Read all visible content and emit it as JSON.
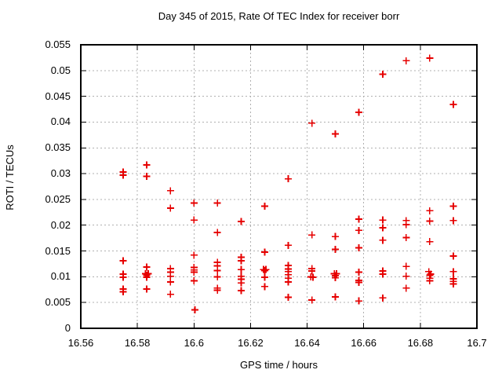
{
  "chart_data": {
    "type": "scatter",
    "title": "Day 345 of 2015, Rate Of TEC Index for receiver borr",
    "xlabel": "GPS time / hours",
    "ylabel": "ROTI / TECUs",
    "xlim": [
      16.56,
      16.7
    ],
    "ylim": [
      0,
      0.055
    ],
    "xticks": [
      16.56,
      16.58,
      16.6,
      16.62,
      16.64,
      16.66,
      16.68,
      16.7
    ],
    "xtick_labels": [
      "16.56",
      "16.58",
      "16.6",
      "16.62",
      "16.64",
      "16.66",
      "16.68",
      "16.7"
    ],
    "yticks": [
      0,
      0.005,
      0.01,
      0.015,
      0.02,
      0.025,
      0.03,
      0.035,
      0.04,
      0.045,
      0.05,
      0.055
    ],
    "ytick_labels": [
      "0",
      "0.005",
      "0.01",
      "0.015",
      "0.02",
      "0.025",
      "0.03",
      "0.035",
      "0.04",
      "0.045",
      "0.05",
      "0.055"
    ],
    "grid": true,
    "legend": null,
    "colors": {
      "marker": "#e60000",
      "grid": "#b0b0b0",
      "axis": "#000000",
      "background": "#ffffff",
      "text": "#000000"
    },
    "marker": {
      "shape": "plus",
      "size": 9
    },
    "series": [
      {
        "name": "ROTI",
        "points": [
          [
            16.575,
            0.0303
          ],
          [
            16.575,
            0.0297
          ],
          [
            16.575,
            0.0131
          ],
          [
            16.575,
            0.0105
          ],
          [
            16.575,
            0.0099
          ],
          [
            16.575,
            0.0076
          ],
          [
            16.575,
            0.0071
          ],
          [
            16.5833,
            0.0317
          ],
          [
            16.5833,
            0.0295
          ],
          [
            16.5833,
            0.0119
          ],
          [
            16.5829,
            0.0106
          ],
          [
            16.5838,
            0.0106
          ],
          [
            16.5833,
            0.0103
          ],
          [
            16.5833,
            0.0099
          ],
          [
            16.5833,
            0.0076
          ],
          [
            16.5917,
            0.0267
          ],
          [
            16.5917,
            0.0233
          ],
          [
            16.5917,
            0.0116
          ],
          [
            16.5917,
            0.0109
          ],
          [
            16.5917,
            0.0101
          ],
          [
            16.5917,
            0.009
          ],
          [
            16.5917,
            0.0066
          ],
          [
            16.6,
            0.0243
          ],
          [
            16.6,
            0.021
          ],
          [
            16.6,
            0.0142
          ],
          [
            16.6,
            0.0118
          ],
          [
            16.6,
            0.0113
          ],
          [
            16.6,
            0.0109
          ],
          [
            16.6,
            0.0092
          ],
          [
            16.6003,
            0.0036
          ],
          [
            16.6083,
            0.0243
          ],
          [
            16.6083,
            0.0186
          ],
          [
            16.6083,
            0.0128
          ],
          [
            16.6083,
            0.0121
          ],
          [
            16.6083,
            0.0112
          ],
          [
            16.6083,
            0.01
          ],
          [
            16.6083,
            0.0078
          ],
          [
            16.6083,
            0.0074
          ],
          [
            16.6167,
            0.0207
          ],
          [
            16.6167,
            0.0138
          ],
          [
            16.6167,
            0.0131
          ],
          [
            16.6167,
            0.0114
          ],
          [
            16.6167,
            0.0101
          ],
          [
            16.6167,
            0.0095
          ],
          [
            16.6167,
            0.0088
          ],
          [
            16.6167,
            0.0073
          ],
          [
            16.625,
            0.0237
          ],
          [
            16.625,
            0.0148
          ],
          [
            16.6246,
            0.0114
          ],
          [
            16.6254,
            0.0114
          ],
          [
            16.625,
            0.0112
          ],
          [
            16.625,
            0.0099
          ],
          [
            16.625,
            0.0081
          ],
          [
            16.6333,
            0.029
          ],
          [
            16.6333,
            0.0161
          ],
          [
            16.6333,
            0.0122
          ],
          [
            16.6333,
            0.0115
          ],
          [
            16.6333,
            0.011
          ],
          [
            16.6333,
            0.0104
          ],
          [
            16.6333,
            0.0097
          ],
          [
            16.6333,
            0.009
          ],
          [
            16.6333,
            0.006
          ],
          [
            16.6417,
            0.0398
          ],
          [
            16.6417,
            0.0181
          ],
          [
            16.6417,
            0.0116
          ],
          [
            16.6417,
            0.0111
          ],
          [
            16.6413,
            0.01
          ],
          [
            16.6421,
            0.0099
          ],
          [
            16.6417,
            0.0055
          ],
          [
            16.65,
            0.0377
          ],
          [
            16.65,
            0.0178
          ],
          [
            16.65,
            0.0153
          ],
          [
            16.6496,
            0.0106
          ],
          [
            16.6504,
            0.0106
          ],
          [
            16.65,
            0.0102
          ],
          [
            16.65,
            0.0098
          ],
          [
            16.65,
            0.0061
          ],
          [
            16.6583,
            0.0419
          ],
          [
            16.6583,
            0.0212
          ],
          [
            16.6583,
            0.019
          ],
          [
            16.6583,
            0.0156
          ],
          [
            16.6583,
            0.0109
          ],
          [
            16.6583,
            0.0093
          ],
          [
            16.6583,
            0.0089
          ],
          [
            16.6583,
            0.0053
          ],
          [
            16.6667,
            0.0493
          ],
          [
            16.6667,
            0.021
          ],
          [
            16.6667,
            0.0195
          ],
          [
            16.6667,
            0.0171
          ],
          [
            16.6667,
            0.0111
          ],
          [
            16.6667,
            0.0105
          ],
          [
            16.6667,
            0.0059
          ],
          [
            16.675,
            0.0519
          ],
          [
            16.675,
            0.0209
          ],
          [
            16.675,
            0.0201
          ],
          [
            16.675,
            0.0176
          ],
          [
            16.675,
            0.012
          ],
          [
            16.675,
            0.0101
          ],
          [
            16.675,
            0.0078
          ],
          [
            16.6833,
            0.0524
          ],
          [
            16.6833,
            0.0228
          ],
          [
            16.6833,
            0.0208
          ],
          [
            16.6833,
            0.0168
          ],
          [
            16.683,
            0.011
          ],
          [
            16.6837,
            0.0105
          ],
          [
            16.6833,
            0.0103
          ],
          [
            16.6833,
            0.0097
          ],
          [
            16.6833,
            0.0092
          ],
          [
            16.6917,
            0.0434
          ],
          [
            16.6917,
            0.0237
          ],
          [
            16.6917,
            0.0209
          ],
          [
            16.6917,
            0.014
          ],
          [
            16.6917,
            0.011
          ],
          [
            16.6917,
            0.0096
          ],
          [
            16.6917,
            0.0091
          ],
          [
            16.6917,
            0.0086
          ]
        ]
      }
    ]
  }
}
